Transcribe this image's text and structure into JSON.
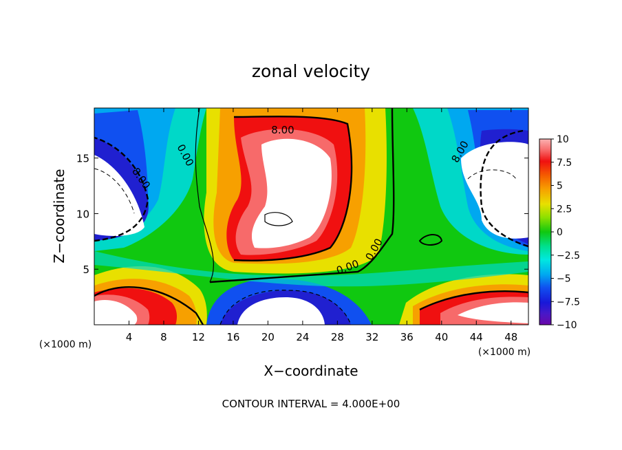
{
  "chart_data": {
    "type": "heatmap",
    "title": "zonal velocity",
    "xlabel": "X−coordinate",
    "ylabel": "Z−coordinate",
    "x_unit": "(×1000 m)",
    "y_unit": "(×1000 m)",
    "xlim": [
      0,
      50
    ],
    "ylim": [
      0,
      19.5
    ],
    "x_ticks": [
      "4",
      "8",
      "12",
      "16",
      "20",
      "24",
      "28",
      "32",
      "36",
      "40",
      "44",
      "48"
    ],
    "y_ticks": [
      "5",
      "10",
      "15"
    ],
    "colorbar": {
      "ticks": [
        "10",
        "7.5",
        "5",
        "2.5",
        "0",
        "−2.5",
        "−5",
        "−7.5",
        "−10"
      ],
      "range": [
        -10,
        10
      ]
    },
    "contour_labels": [
      "8.00",
      "0.00",
      "8.00",
      "0.00",
      "0.00",
      "8.00"
    ],
    "footer": "CONTOUR INTERVAL = 4.000E+00",
    "grid": false,
    "legend": "colorbar right"
  }
}
